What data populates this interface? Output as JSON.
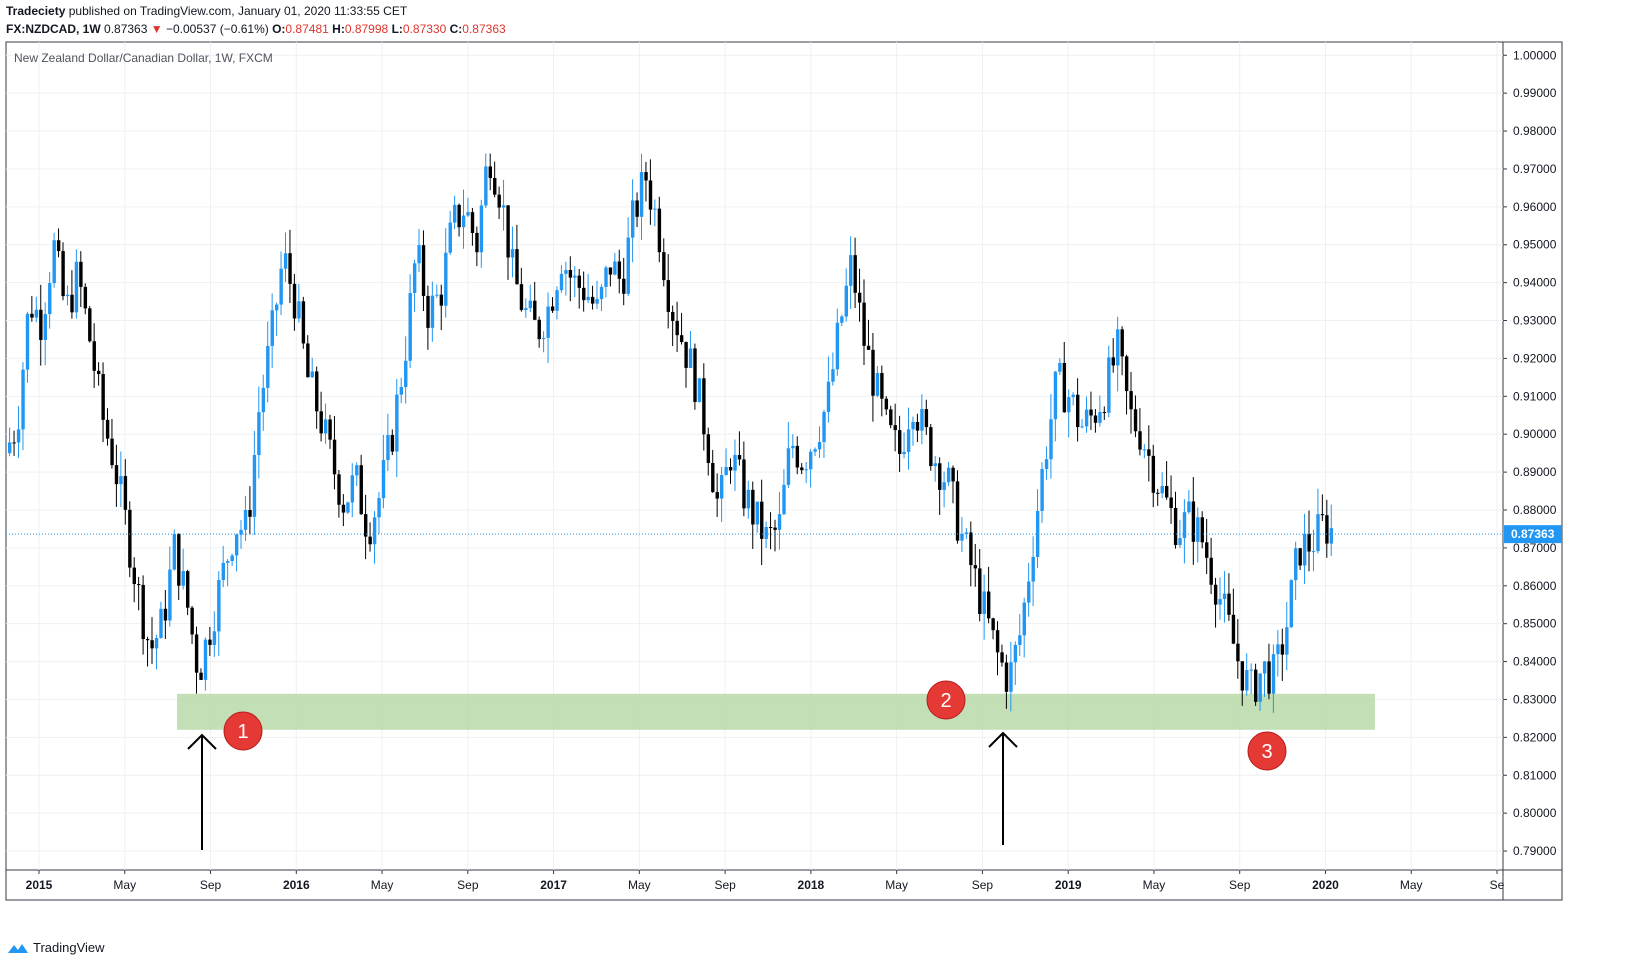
{
  "header": {
    "publisher": "Tradeciety",
    "published_text": "published on TradingView.com, January 01, 2020 11:33:55 CET",
    "symbol": "FX:NZDCAD, 1W",
    "last": "0.87363",
    "change": "−0.00537 (−0.61%)",
    "o_label": "O:",
    "o_val": "0.87481",
    "h_label": "H:",
    "h_val": "0.87998",
    "l_label": "L:",
    "l_val": "0.87330",
    "c_label": "C:",
    "c_val": "0.87363"
  },
  "footer": {
    "brand": "TradingView"
  },
  "colors": {
    "up": "#2196f3",
    "down": "#000000",
    "zone": "#b7d9a8",
    "badge": "#e53935",
    "price_tag": "#2196f3"
  },
  "chart_data": {
    "type": "candlestick",
    "title": "New Zealand Dollar/Canadian Dollar, 1W, FXCM",
    "ylim": [
      0.785,
      1.0035
    ],
    "y_ticks": [
      "1.00000",
      "0.99000",
      "0.98000",
      "0.97000",
      "0.96000",
      "0.95000",
      "0.94000",
      "0.93000",
      "0.92000",
      "0.91000",
      "0.90000",
      "0.89000",
      "0.88000",
      "0.87000",
      "0.86000",
      "0.85000",
      "0.84000",
      "0.83000",
      "0.82000",
      "0.81000",
      "0.80000",
      "0.79000"
    ],
    "x_ticks": [
      "2015",
      "May",
      "Sep",
      "2016",
      "May",
      "Sep",
      "2017",
      "May",
      "Sep",
      "2018",
      "May",
      "Sep",
      "2019",
      "May",
      "Sep",
      "2020",
      "May",
      "Se"
    ],
    "last_price": 0.87363,
    "last_price_label": "0.87363",
    "support_zone": [
      0.822,
      0.8315
    ],
    "annotations": [
      "1",
      "2",
      "3"
    ],
    "approx_weekly_path": [
      [
        0.0,
        0.895
      ],
      [
        0.1,
        0.903
      ],
      [
        0.2,
        0.935
      ],
      [
        0.3,
        0.93
      ],
      [
        0.4,
        0.95
      ],
      [
        0.5,
        0.932
      ],
      [
        0.6,
        0.942
      ],
      [
        0.7,
        0.925
      ],
      [
        0.8,
        0.905
      ],
      [
        0.9,
        0.893
      ],
      [
        1.0,
        0.876
      ],
      [
        1.1,
        0.858
      ],
      [
        1.2,
        0.843
      ],
      [
        1.3,
        0.85
      ],
      [
        1.4,
        0.87
      ],
      [
        1.5,
        0.856
      ],
      [
        1.6,
        0.837
      ],
      [
        1.7,
        0.85
      ],
      [
        1.8,
        0.863
      ],
      [
        1.9,
        0.876
      ],
      [
        2.0,
        0.875
      ],
      [
        2.1,
        0.907
      ],
      [
        2.2,
        0.925
      ],
      [
        2.3,
        0.947
      ],
      [
        2.4,
        0.935
      ],
      [
        2.5,
        0.915
      ],
      [
        2.6,
        0.905
      ],
      [
        2.7,
        0.893
      ],
      [
        2.8,
        0.882
      ],
      [
        2.9,
        0.888
      ],
      [
        3.0,
        0.875
      ],
      [
        3.1,
        0.884
      ],
      [
        3.2,
        0.9
      ],
      [
        3.3,
        0.92
      ],
      [
        3.4,
        0.948
      ],
      [
        3.5,
        0.932
      ],
      [
        3.6,
        0.937
      ],
      [
        3.7,
        0.955
      ],
      [
        3.8,
        0.96
      ],
      [
        3.9,
        0.95
      ],
      [
        4.0,
        0.975
      ],
      [
        4.1,
        0.963
      ],
      [
        4.2,
        0.942
      ],
      [
        4.3,
        0.932
      ],
      [
        4.4,
        0.927
      ],
      [
        4.5,
        0.934
      ],
      [
        4.6,
        0.947
      ],
      [
        4.7,
        0.94
      ],
      [
        4.8,
        0.938
      ],
      [
        4.9,
        0.932
      ],
      [
        5.0,
        0.945
      ],
      [
        5.1,
        0.94
      ],
      [
        5.2,
        0.958
      ],
      [
        5.3,
        0.968
      ],
      [
        5.4,
        0.955
      ],
      [
        5.5,
        0.935
      ],
      [
        5.6,
        0.925
      ],
      [
        5.7,
        0.915
      ],
      [
        5.8,
        0.9
      ],
      [
        5.9,
        0.88
      ],
      [
        6.0,
        0.895
      ],
      [
        6.1,
        0.885
      ],
      [
        6.2,
        0.878
      ],
      [
        6.3,
        0.872
      ],
      [
        6.4,
        0.875
      ],
      [
        6.5,
        0.898
      ],
      [
        6.6,
        0.893
      ],
      [
        6.7,
        0.9
      ],
      [
        6.8,
        0.908
      ],
      [
        6.9,
        0.928
      ],
      [
        7.0,
        0.945
      ],
      [
        7.1,
        0.925
      ],
      [
        7.2,
        0.912
      ],
      [
        7.3,
        0.9
      ],
      [
        7.4,
        0.895
      ],
      [
        7.5,
        0.91
      ],
      [
        7.6,
        0.9
      ],
      [
        7.7,
        0.893
      ],
      [
        7.8,
        0.887
      ],
      [
        7.9,
        0.874
      ],
      [
        8.0,
        0.864
      ],
      [
        8.1,
        0.853
      ],
      [
        8.2,
        0.842
      ],
      [
        8.3,
        0.835
      ],
      [
        8.4,
        0.848
      ],
      [
        8.5,
        0.872
      ],
      [
        8.6,
        0.895
      ],
      [
        8.7,
        0.914
      ],
      [
        8.8,
        0.91
      ],
      [
        8.9,
        0.902
      ],
      [
        9.0,
        0.905
      ],
      [
        9.1,
        0.912
      ],
      [
        9.2,
        0.922
      ],
      [
        9.3,
        0.905
      ],
      [
        9.4,
        0.9
      ],
      [
        9.5,
        0.89
      ],
      [
        9.6,
        0.882
      ],
      [
        9.7,
        0.875
      ],
      [
        9.8,
        0.878
      ],
      [
        9.9,
        0.872
      ],
      [
        10.0,
        0.862
      ],
      [
        10.1,
        0.851
      ],
      [
        10.2,
        0.84
      ],
      [
        10.3,
        0.832
      ],
      [
        10.4,
        0.838
      ],
      [
        10.5,
        0.836
      ],
      [
        10.6,
        0.85
      ],
      [
        10.7,
        0.87
      ],
      [
        10.8,
        0.871
      ],
      [
        10.9,
        0.876
      ],
      [
        11.0,
        0.874
      ]
    ]
  }
}
